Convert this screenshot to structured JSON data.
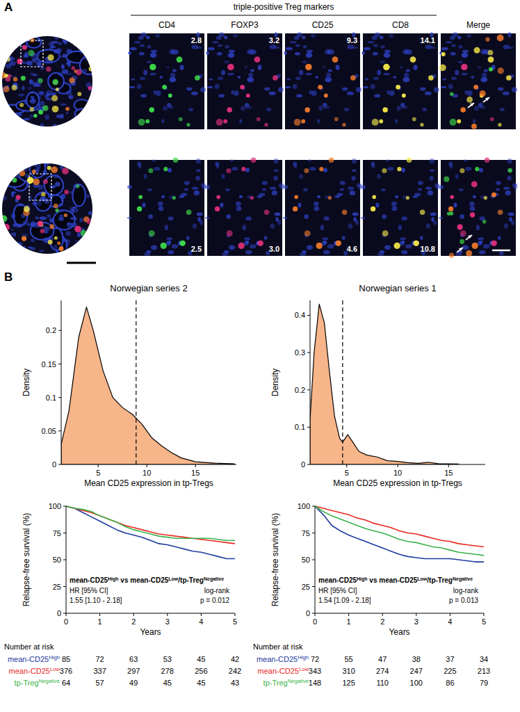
{
  "panel_a": {
    "label": "A",
    "group_label": "triple-positive Treg markers",
    "columns": [
      "CD4",
      "FOXP3",
      "CD25",
      "CD8",
      "Merge"
    ],
    "rows": [
      {
        "values": [
          "2.8",
          "3.2",
          "9.3",
          "14.1"
        ]
      },
      {
        "values": [
          "2.5",
          "3.0",
          "4.6",
          "10.8"
        ]
      }
    ]
  },
  "panel_b_label": "B",
  "chart_data": [
    {
      "type": "area",
      "title": "Norwegian series 2",
      "x_label": "Mean CD25 expression in tp-Tregs",
      "y_label": "Density",
      "x": [
        1.2,
        2,
        3,
        3.8,
        4.5,
        5.5,
        6.5,
        7.5,
        8.5,
        9.5,
        10.5,
        11.5,
        12.5,
        13.5,
        15,
        17,
        19
      ],
      "values": [
        0.03,
        0.08,
        0.19,
        0.235,
        0.2,
        0.14,
        0.1,
        0.085,
        0.075,
        0.06,
        0.04,
        0.028,
        0.018,
        0.01,
        0.004,
        0.002,
        0.001
      ],
      "color": "#f7b58a",
      "cutoff": 8.9,
      "xlim": [
        1.2,
        19.2
      ],
      "xticks": [
        5,
        10,
        15
      ],
      "ylim": [
        0,
        0.245
      ],
      "yticks": [
        0,
        0.05,
        0.1,
        0.15,
        0.2
      ]
    },
    {
      "type": "line",
      "x_label": "Years",
      "y_label": "Relapse-free survival (%)",
      "x": [
        0,
        0.25,
        0.5,
        0.75,
        1,
        1.25,
        1.5,
        1.75,
        2,
        2.25,
        2.5,
        2.75,
        3,
        3.25,
        3.5,
        3.75,
        4,
        4.25,
        4.5,
        4.75,
        5
      ],
      "xlim": [
        0,
        5
      ],
      "xticks": [
        0,
        1,
        2,
        3,
        4,
        5
      ],
      "ylim": [
        0,
        100
      ],
      "yticks": [
        0,
        25,
        50,
        75,
        100
      ],
      "annotation": "mean-CD25High vs mean-CD25Low/tp-TregNegative",
      "hr_label": "HR [95% CI]",
      "hr_value": "1.55 [1.10 - 2.18]",
      "test_label": "log-rank",
      "p_value": "p = 0.012",
      "risk_title": "Number at risk",
      "risk_x": [
        0,
        1,
        2,
        3,
        4,
        5
      ],
      "series": [
        {
          "name": "mean-CD25High",
          "color": "#1c3a9e",
          "values": [
            100,
            98,
            94,
            90,
            86,
            82,
            78,
            75,
            73,
            71,
            68,
            65,
            64,
            62,
            60,
            58,
            57,
            55,
            53,
            51,
            51
          ],
          "at_risk": [
            85,
            72,
            63,
            53,
            45,
            42
          ]
        },
        {
          "name": "mean-CD25Low",
          "color": "#e8251e",
          "values": [
            100,
            98,
            96,
            94,
            91,
            88,
            85,
            82,
            80,
            78,
            76,
            74,
            73,
            72,
            71,
            70,
            69,
            68,
            67,
            66,
            65
          ],
          "at_risk": [
            376,
            337,
            297,
            278,
            256,
            242
          ]
        },
        {
          "name": "tp-TregNegative",
          "color": "#38b34a",
          "values": [
            100,
            98,
            97,
            95,
            91,
            88,
            85,
            81,
            78,
            76,
            74,
            72,
            71,
            70,
            70,
            70,
            70,
            70,
            69,
            68,
            68
          ],
          "at_risk": [
            64,
            57,
            49,
            45,
            45,
            43
          ]
        }
      ]
    },
    {
      "type": "area",
      "title": "Norwegian series 1",
      "x_label": "Mean CD25 expression in tp-Tregs",
      "y_label": "Density",
      "x": [
        1.4,
        1.8,
        2.3,
        2.8,
        3.3,
        3.8,
        4.3,
        4.6,
        5.1,
        5.6,
        6.2,
        7,
        8,
        9,
        10,
        11,
        12,
        13,
        14,
        16
      ],
      "values": [
        0.12,
        0.3,
        0.43,
        0.38,
        0.25,
        0.13,
        0.07,
        0.06,
        0.08,
        0.06,
        0.035,
        0.025,
        0.02,
        0.01,
        0.008,
        0.005,
        0.003,
        0.006,
        0.002,
        0.001
      ],
      "color": "#f7b58a",
      "cutoff": 4.6,
      "xlim": [
        1.4,
        18.6
      ],
      "xticks": [
        5,
        10,
        15
      ],
      "ylim": [
        0,
        0.44
      ],
      "yticks": [
        0,
        0.1,
        0.2,
        0.3,
        0.4
      ]
    },
    {
      "type": "line",
      "x_label": "Years",
      "y_label": "Relapse-free survival (%)",
      "x": [
        0,
        0.25,
        0.5,
        0.75,
        1,
        1.25,
        1.5,
        1.75,
        2,
        2.25,
        2.5,
        2.75,
        3,
        3.25,
        3.5,
        3.75,
        4,
        4.25,
        4.5,
        4.75,
        5
      ],
      "xlim": [
        0,
        5
      ],
      "xticks": [
        0,
        1,
        2,
        3,
        4,
        5
      ],
      "ylim": [
        0,
        100
      ],
      "yticks": [
        0,
        25,
        50,
        75,
        100
      ],
      "annotation": "mean-CD25High vs mean-CD25Low/tp-TregNegative",
      "hr_label": "HR [95% CI]",
      "hr_value": "1.54 [1.09 - 2.18]",
      "test_label": "log-rank",
      "p_value": "p = 0.013",
      "risk_title": "Number at risk",
      "risk_x": [
        0,
        1,
        2,
        3,
        4,
        5
      ],
      "series": [
        {
          "name": "mean-CD25High",
          "color": "#1c3a9e",
          "values": [
            100,
            92,
            82,
            77,
            73,
            70,
            67,
            64,
            61,
            58,
            55,
            53,
            52,
            51,
            51,
            51,
            51,
            50,
            49,
            48,
            48
          ],
          "at_risk": [
            72,
            55,
            47,
            38,
            37,
            34
          ]
        },
        {
          "name": "mean-CD25Low",
          "color": "#e8251e",
          "values": [
            100,
            98,
            96,
            94,
            92,
            89,
            87,
            84,
            82,
            80,
            77,
            75,
            74,
            72,
            70,
            68,
            67,
            65,
            64,
            63,
            62
          ],
          "at_risk": [
            343,
            310,
            274,
            247,
            225,
            213
          ]
        },
        {
          "name": "tp-TregNegative",
          "color": "#38b34a",
          "values": [
            100,
            95,
            91,
            88,
            85,
            82,
            79,
            77,
            75,
            72,
            69,
            67,
            66,
            64,
            62,
            61,
            59,
            57,
            56,
            55,
            54
          ],
          "at_risk": [
            148,
            125,
            110,
            100,
            86,
            79
          ]
        }
      ]
    }
  ]
}
